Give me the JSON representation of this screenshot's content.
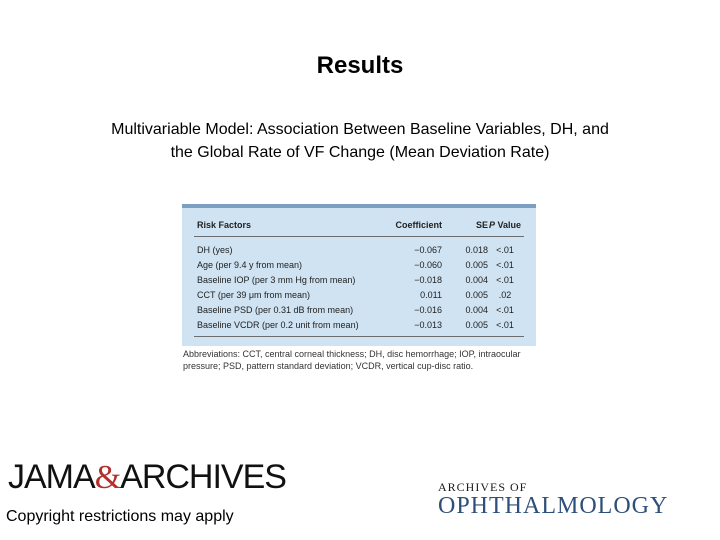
{
  "slide": {
    "title": "Results",
    "subtitle_line1": "Multivariable Model: Association Between Baseline Variables, DH, and",
    "subtitle_line2": "the Global Rate of VF Change (Mean Deviation Rate)"
  },
  "table": {
    "headers": {
      "risk": "Risk Factors",
      "coef": "Coefficient",
      "se": "SE",
      "p_italic": "P",
      "p_rest": " Value"
    },
    "rows": [
      {
        "risk": "DH (yes)",
        "coef": "−0.067",
        "se": "0.018",
        "p": "<.01"
      },
      {
        "risk": "Age (per 9.4 y from mean)",
        "coef": "−0.060",
        "se": "0.005",
        "p": "<.01"
      },
      {
        "risk": "Baseline IOP (per 3 mm Hg from mean)",
        "coef": "−0.018",
        "se": "0.004",
        "p": "<.01"
      },
      {
        "risk": "CCT (per 39 μm from mean)",
        "coef": "0.011",
        "se": "0.005",
        "p": ".02"
      },
      {
        "risk": "Baseline PSD (per 0.31 dB from mean)",
        "coef": "−0.016",
        "se": "0.004",
        "p": "<.01"
      },
      {
        "risk": "Baseline VCDR (per 0.2 unit from mean)",
        "coef": "−0.013",
        "se": "0.005",
        "p": "<.01"
      }
    ],
    "abbreviations": "Abbreviations: CCT, central corneal thickness; DH, disc hemorrhage; IOP, intraocular pressure; PSD, pattern standard deviation; VCDR, vertical cup-disc ratio."
  },
  "footer": {
    "jama_left": "JAMA",
    "jama_amp": "&",
    "jama_right": "ARCHIVES",
    "copyright": "Copyright restrictions may apply",
    "archives_line1": "ARCHIVES OF",
    "archives_line2": "OPHTHALMOLOGY"
  }
}
